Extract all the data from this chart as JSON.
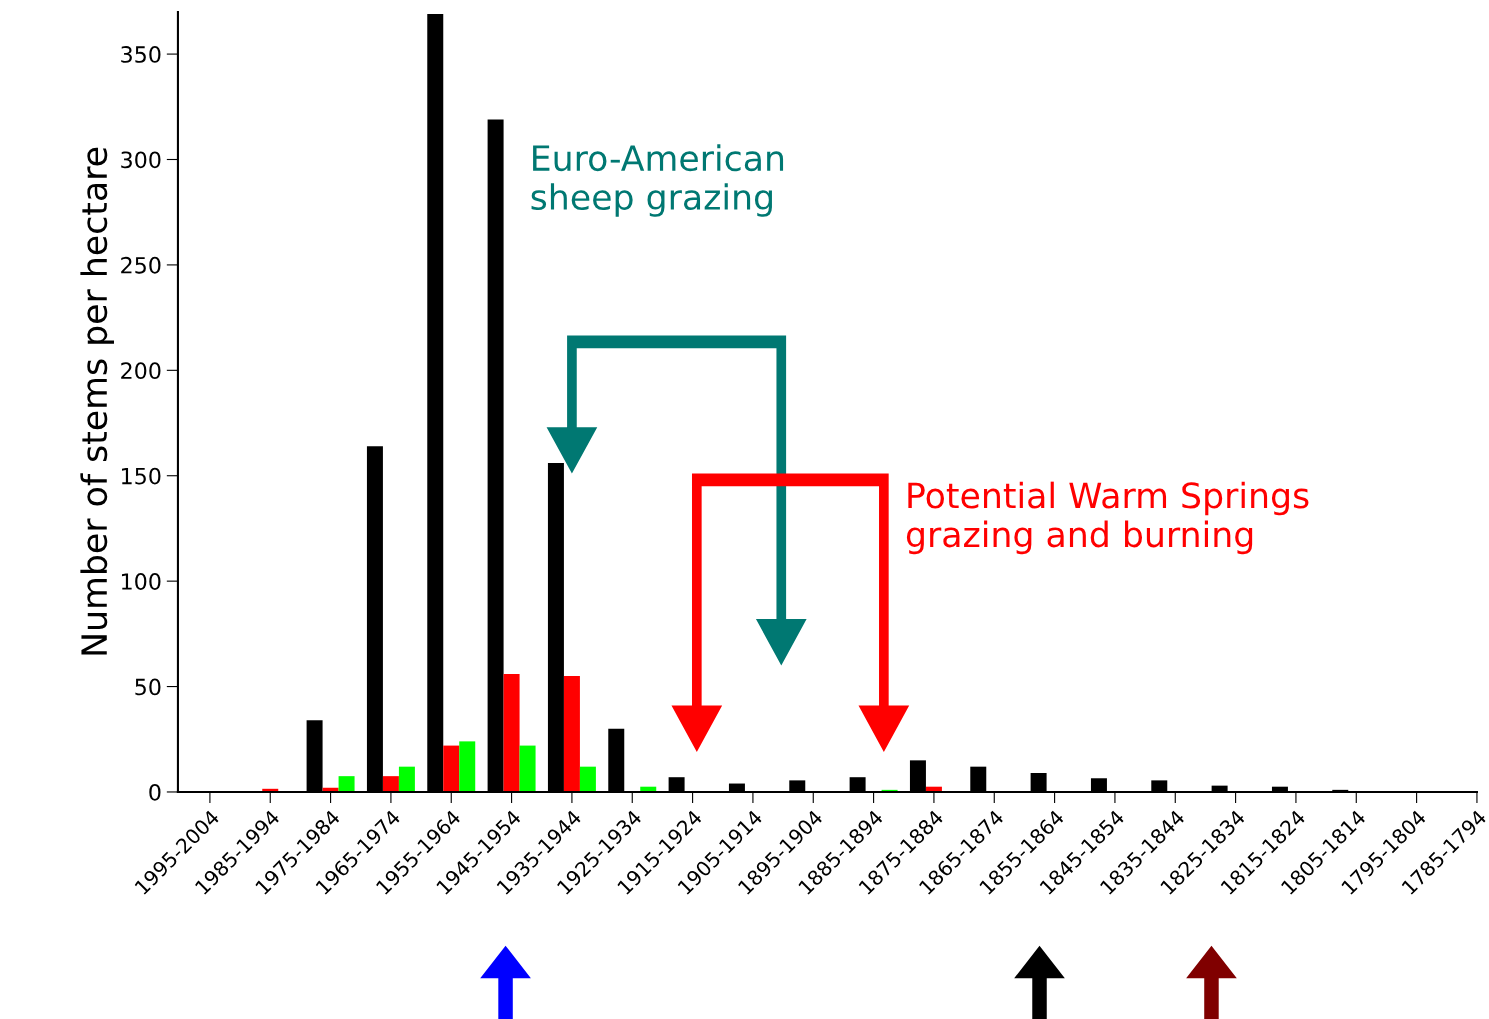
{
  "chart_data": {
    "type": "bar",
    "ylabel": "Number of stems per hectare",
    "categories": [
      "1995-2004",
      "1985-1994",
      "1975-1984",
      "1965-1974",
      "1955-1964",
      "1945-1954",
      "1935-1944",
      "1925-1934",
      "1915-1924",
      "1905-1914",
      "1895-1904",
      "1885-1894",
      "1875-1884",
      "1865-1874",
      "1855-1864",
      "1845-1854",
      "1835-1844",
      "1825-1834",
      "1815-1824",
      "1805-1814",
      "1795-1804",
      "1785-1794"
    ],
    "series": [
      {
        "color": "#000000",
        "values": [
          0,
          0,
          34,
          164,
          369,
          319,
          156,
          30,
          7,
          4,
          5.5,
          7,
          15,
          12,
          9,
          6.5,
          5.5,
          3,
          2.5,
          1,
          0,
          0
        ]
      },
      {
        "color": "#ff0000",
        "values": [
          0,
          1.5,
          2,
          7.5,
          22,
          56,
          55,
          0,
          0,
          0,
          0,
          0,
          2.5,
          0,
          0,
          0,
          0,
          0,
          0,
          0,
          0,
          0
        ]
      },
      {
        "color": "#00ff00",
        "values": [
          0,
          0,
          7.5,
          12,
          24,
          22,
          12,
          2.5,
          0,
          0,
          0,
          1,
          0,
          0,
          0,
          0,
          0,
          0,
          0,
          0,
          0,
          0
        ]
      }
    ],
    "ylim": [
      0,
      370
    ],
    "yticks": [
      0,
      50,
      100,
      150,
      200,
      250,
      300,
      350
    ],
    "grid": false,
    "annotations": [
      "Euro-American\nsheep grazing",
      "Potential Warm Springs\ngrazing and burning"
    ]
  }
}
